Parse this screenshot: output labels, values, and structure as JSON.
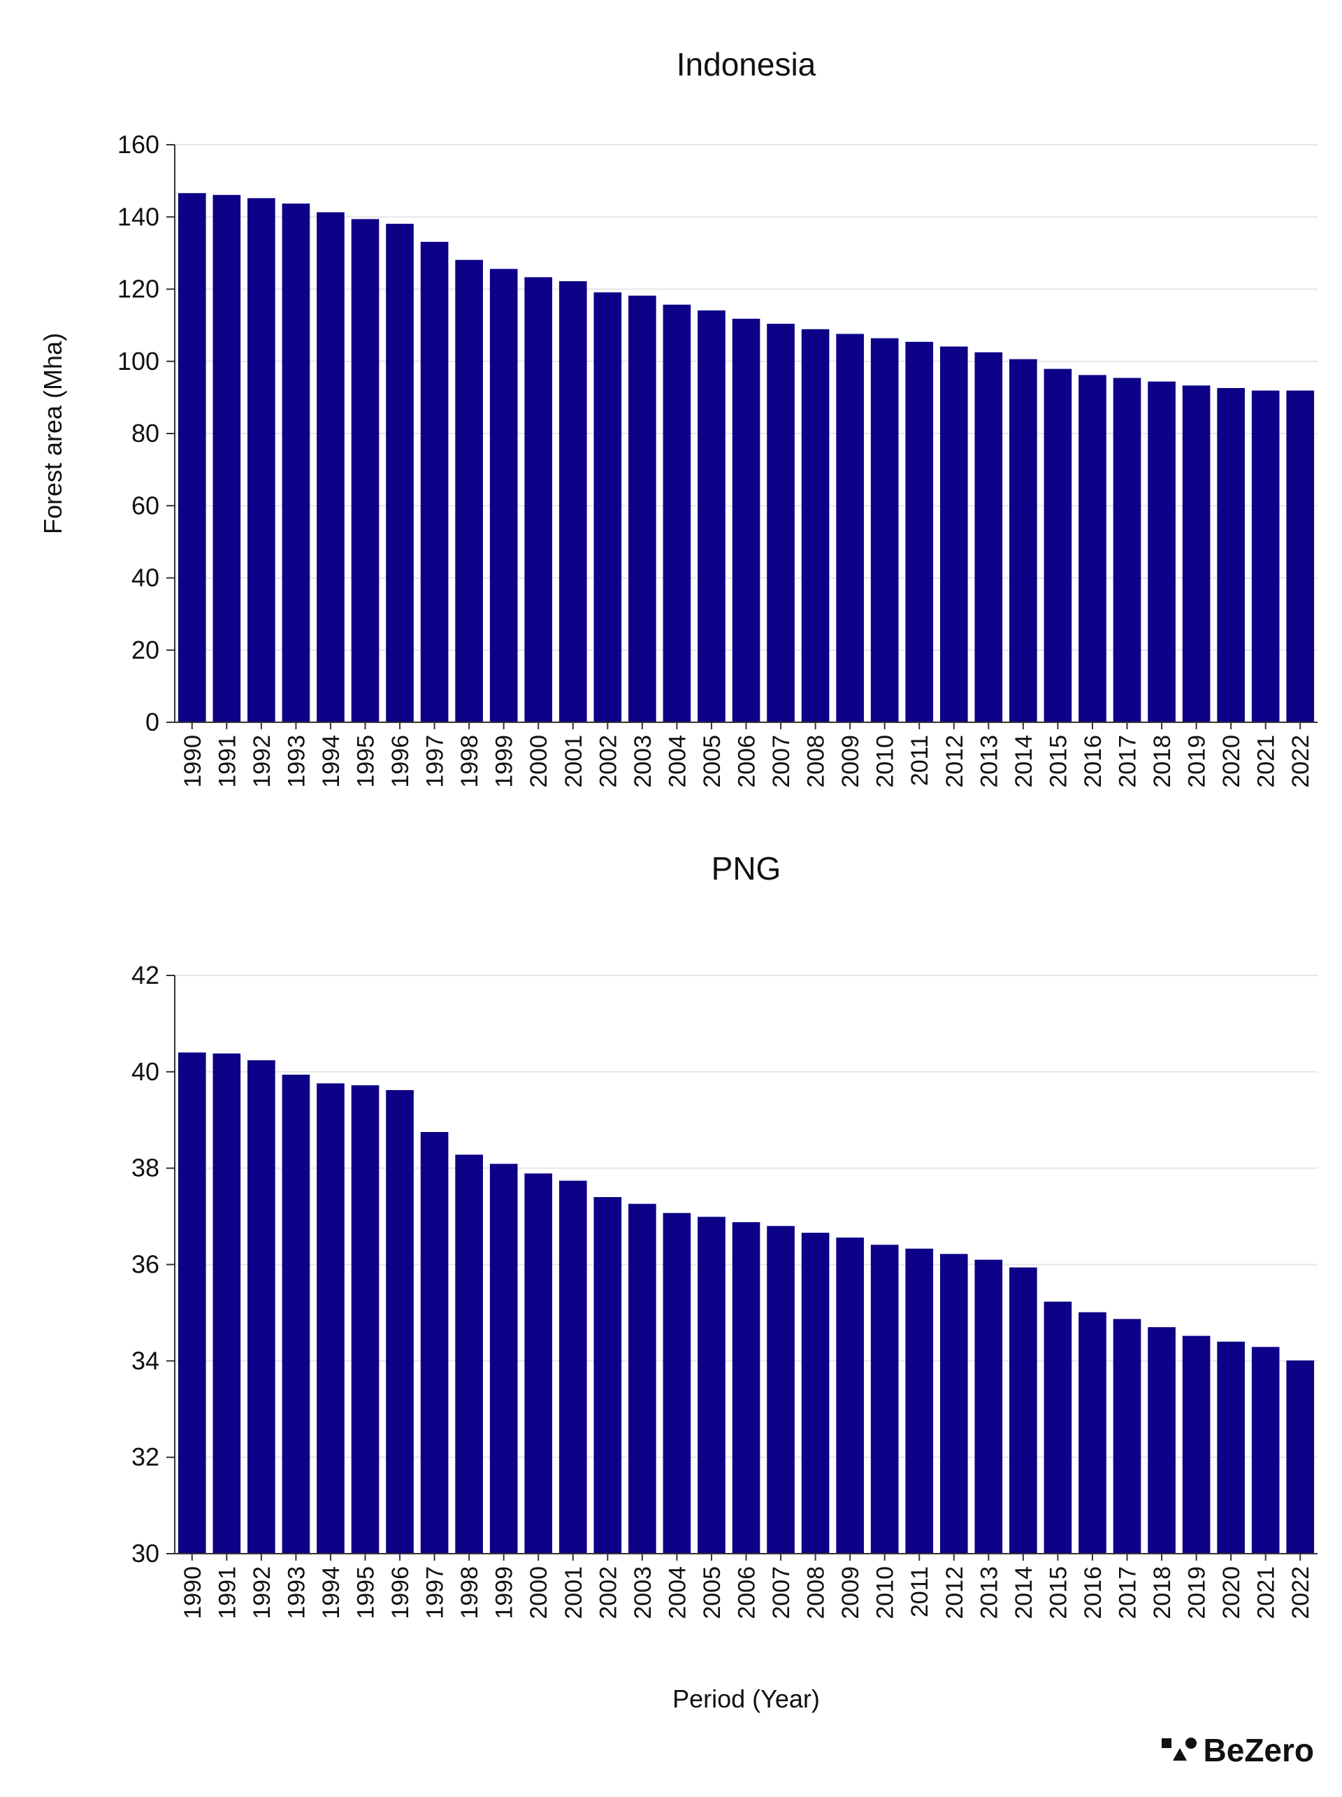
{
  "chart_data": [
    {
      "type": "bar",
      "title": "Indonesia",
      "ylabel": "Forest area (Mha)",
      "xlabel": "",
      "ylim": [
        0,
        160
      ],
      "yticks": [
        0,
        20,
        40,
        60,
        80,
        100,
        120,
        140,
        160
      ],
      "grid": true,
      "categories": [
        "1990",
        "1991",
        "1992",
        "1993",
        "1994",
        "1995",
        "1996",
        "1997",
        "1998",
        "1999",
        "2000",
        "2001",
        "2002",
        "2003",
        "2004",
        "2005",
        "2006",
        "2007",
        "2008",
        "2009",
        "2010",
        "2011",
        "2012",
        "2013",
        "2014",
        "2015",
        "2016",
        "2017",
        "2018",
        "2019",
        "2020",
        "2021",
        "2022"
      ],
      "values": [
        146.6,
        146.1,
        145.2,
        143.7,
        141.3,
        139.4,
        138.1,
        133.1,
        128.1,
        125.6,
        123.3,
        122.2,
        119.1,
        118.2,
        115.7,
        114.1,
        111.8,
        110.4,
        108.9,
        107.6,
        106.4,
        105.4,
        104.1,
        102.5,
        100.6,
        97.9,
        96.2,
        95.4,
        94.4,
        93.3,
        92.6,
        91.9,
        91.9
      ],
      "color": "#0c0187"
    },
    {
      "type": "bar",
      "title": "PNG",
      "ylabel": "",
      "xlabel": "Period (Year)",
      "ylim": [
        30,
        42
      ],
      "yticks": [
        30,
        32,
        34,
        36,
        38,
        40,
        42
      ],
      "grid": true,
      "categories": [
        "1990",
        "1991",
        "1992",
        "1993",
        "1994",
        "1995",
        "1996",
        "1997",
        "1998",
        "1999",
        "2000",
        "2001",
        "2002",
        "2003",
        "2004",
        "2005",
        "2006",
        "2007",
        "2008",
        "2009",
        "2010",
        "2011",
        "2012",
        "2013",
        "2014",
        "2015",
        "2016",
        "2017",
        "2018",
        "2019",
        "2020",
        "2021",
        "2022"
      ],
      "values": [
        40.4,
        40.38,
        40.24,
        39.94,
        39.76,
        39.72,
        39.62,
        38.75,
        38.28,
        38.09,
        37.89,
        37.74,
        37.4,
        37.26,
        37.07,
        36.99,
        36.88,
        36.8,
        36.66,
        36.56,
        36.41,
        36.33,
        36.22,
        36.1,
        35.94,
        35.23,
        35.01,
        34.87,
        34.7,
        34.52,
        34.4,
        34.29,
        34.01
      ],
      "color": "#0c0187"
    }
  ],
  "branding": {
    "logo_text": "BeZero"
  }
}
